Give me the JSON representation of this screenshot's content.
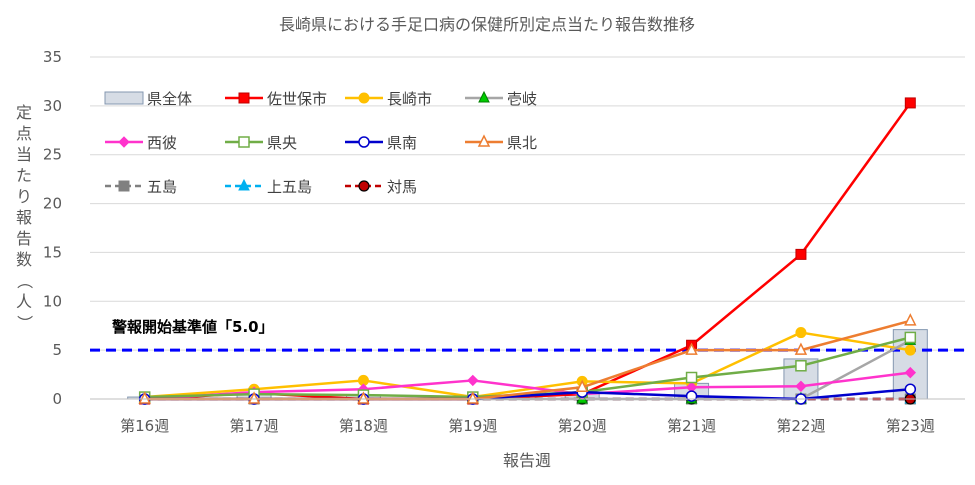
{
  "chart_data": {
    "type": "line",
    "title": "長崎県における手足口病の保健所別定点当たり報告数推移",
    "xlabel": "報告週",
    "ylabel": "定点当たり報告数（人）",
    "ylim": [
      0,
      35
    ],
    "yticks": [
      0,
      5,
      10,
      15,
      20,
      25,
      30,
      35
    ],
    "grid": true,
    "legend_position": "top-left",
    "categories": [
      "第16週",
      "第17週",
      "第18週",
      "第19週",
      "第20週",
      "第21週",
      "第22週",
      "第23週"
    ],
    "bar_series": {
      "name": "県全体",
      "color": "#d6dce5",
      "values": [
        0.2,
        0.5,
        0.4,
        0.2,
        0.7,
        1.6,
        4.1,
        7.1
      ]
    },
    "series": [
      {
        "name": "佐世保市",
        "color": "#ff0000",
        "marker": "square",
        "dash": "solid",
        "values": [
          0,
          0.6,
          0,
          0,
          0.5,
          5.5,
          14.8,
          30.3
        ]
      },
      {
        "name": "長崎市",
        "color": "#ffc000",
        "marker": "circle",
        "dash": "solid",
        "values": [
          0.2,
          1.0,
          1.9,
          0.2,
          1.8,
          1.6,
          6.8,
          5.0
        ]
      },
      {
        "name": "壱岐",
        "color": "#a6a6a6",
        "marker": "triangle",
        "marker_fill": "#00cc00",
        "dash": "solid",
        "values": [
          0,
          0,
          0,
          0,
          0,
          0,
          0,
          6.0
        ]
      },
      {
        "name": "西彼",
        "color": "#ff33cc",
        "marker": "diamond",
        "dash": "solid",
        "values": [
          0,
          0.7,
          1.0,
          1.9,
          0.5,
          1.2,
          1.3,
          2.7
        ]
      },
      {
        "name": "県央",
        "color": "#70ad47",
        "marker": "square-open",
        "dash": "solid",
        "values": [
          0.2,
          0.5,
          0.4,
          0.2,
          0.7,
          2.2,
          3.4,
          6.3
        ]
      },
      {
        "name": "県南",
        "color": "#0000cc",
        "marker": "circle-open",
        "dash": "solid",
        "values": [
          0,
          0,
          0,
          0,
          0.7,
          0.3,
          0,
          1.0
        ]
      },
      {
        "name": "県北",
        "color": "#ed7d31",
        "marker": "triangle-open",
        "dash": "solid",
        "values": [
          0,
          0,
          0,
          0,
          1.2,
          5.0,
          5.0,
          8.0
        ]
      },
      {
        "name": "五島",
        "color": "#808080",
        "marker": "square",
        "dash": "dash",
        "values": [
          0,
          0,
          0,
          0,
          0,
          0,
          0,
          0
        ]
      },
      {
        "name": "上五島",
        "color": "#00b0f0",
        "marker": "triangle",
        "dash": "dash",
        "values": [
          0,
          0,
          0,
          0,
          0,
          0,
          0,
          0
        ]
      },
      {
        "name": "対馬",
        "color": "#c00000",
        "marker": "circle-dark",
        "dash": "dash",
        "values": [
          0,
          0,
          0,
          0,
          0,
          0,
          0,
          0
        ]
      }
    ],
    "reference_line": {
      "value": 5.0,
      "color": "#0000ff",
      "label": "警報開始基準値「5.0」"
    }
  }
}
